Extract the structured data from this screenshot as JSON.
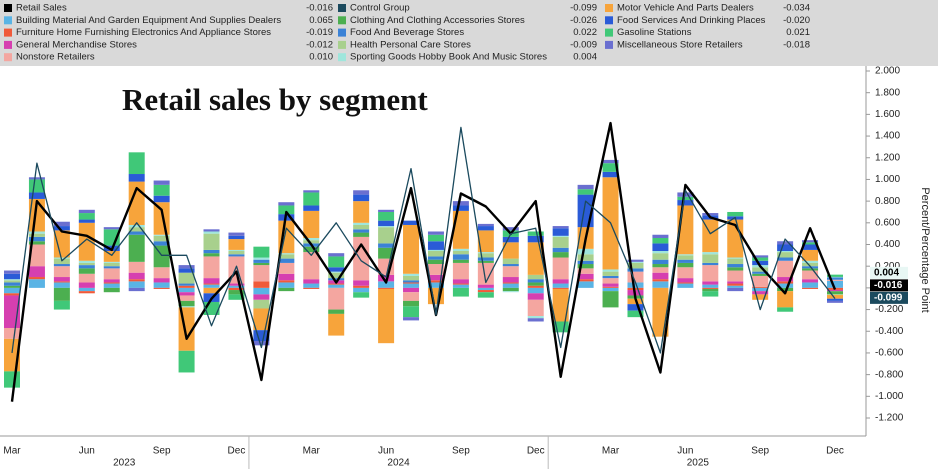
{
  "chart_data": {
    "type": "bar",
    "title": "Retail sales by segment",
    "y_label": "Percent/Percentage Point",
    "categories": [
      "Mar",
      null,
      null,
      "Jun",
      null,
      null,
      "Sep",
      null,
      null,
      "Dec",
      null,
      null,
      "Mar",
      null,
      null,
      "Jun",
      null,
      null,
      "Sep",
      null,
      null,
      "Dec",
      null,
      null,
      "Mar",
      null,
      null,
      "Jun",
      null,
      null,
      "Sep",
      null,
      null,
      "Dec"
    ],
    "year_labels": [
      "2023",
      "2024",
      "2025"
    ],
    "ylim": [
      -1.2,
      2.0
    ],
    "yticks": [
      {
        "value": 2.0,
        "label": "2.000"
      },
      {
        "value": 1.8,
        "label": "1.800"
      },
      {
        "value": 1.6,
        "label": "1.600"
      },
      {
        "value": 1.4,
        "label": "1.400"
      },
      {
        "value": 1.2,
        "label": "1.200"
      },
      {
        "value": 1.0,
        "label": "1.000"
      },
      {
        "value": 0.8,
        "label": "0.800"
      },
      {
        "value": 0.6,
        "label": "0.600"
      },
      {
        "value": 0.4,
        "label": "0.400"
      },
      {
        "value": 0.2,
        "label": "0.200"
      },
      {
        "value": 0,
        "label": "0.000"
      },
      {
        "value": -0.2,
        "label": "-0.200"
      },
      {
        "value": -0.4,
        "label": "-0.400"
      },
      {
        "value": -0.6,
        "label": "-0.600"
      },
      {
        "value": -0.8,
        "label": "-0.800"
      },
      {
        "value": -1.0,
        "label": "-1.000"
      },
      {
        "value": -1.2,
        "label": "-1.200"
      }
    ],
    "grid": false,
    "series": [
      {
        "name": "Retail Sales",
        "kind": "line",
        "color": "#000000",
        "legend_value": "-0.016",
        "badge": true,
        "values": [
          -1.05,
          0.8,
          0.52,
          0.48,
          0.35,
          0.92,
          0.72,
          -0.47,
          -0.1,
          0.15,
          -0.85,
          0.7,
          0.4,
          0.05,
          0.4,
          0.05,
          0.92,
          -0.25,
          0.87,
          0.75,
          0.5,
          0.8,
          -0.82,
          0.45,
          1.52,
          -0.1,
          -0.78,
          0.95,
          0.65,
          0.58,
          0.2,
          -0.05,
          0.55,
          -0.016
        ]
      },
      {
        "name": "Building Material And Garden Equipment And Supplies Dealers",
        "kind": "bar",
        "color": "#5ab4e5",
        "legend_value": "0.065",
        "values": [
          -0.05,
          0.08,
          0.05,
          -0.03,
          0.04,
          0.06,
          0.05,
          -0.04,
          0.03,
          0.02,
          -0.06,
          0.05,
          0.04,
          0.03,
          -0.04,
          0.06,
          0.04,
          0.05,
          0.03,
          -0.02,
          0.04,
          -0.05,
          0.04,
          0.06,
          -0.03,
          0.05,
          0.06,
          0.04,
          0.03,
          0.02,
          -0.03,
          0.04,
          0.05,
          0.065
        ]
      },
      {
        "name": "Furniture Home Furnishing Electronics And Appliance Stores",
        "kind": "bar",
        "color": "#f05a3a",
        "legend_value": "-0.019",
        "values": [
          -0.02,
          0.02,
          0.01,
          -0.02,
          0.01,
          0.02,
          -0.01,
          0.02,
          0.01,
          -0.02,
          0.06,
          0.02,
          -0.01,
          0.01,
          0.02,
          -0.01,
          0.01,
          0.02,
          0.01,
          -0.02,
          0.01,
          0.02,
          -0.01,
          0.02,
          0.01,
          -0.02,
          0.02,
          0.01,
          -0.01,
          0.02,
          0.01,
          0.02,
          -0.01,
          -0.019
        ]
      },
      {
        "name": "General Merchandise Stores",
        "kind": "bar",
        "color": "#d63fb0",
        "legend_value": "-0.012",
        "values": [
          -0.3,
          0.1,
          0.04,
          0.05,
          0.03,
          0.06,
          0.04,
          -0.03,
          0.05,
          0.02,
          -0.05,
          0.06,
          0.04,
          0.03,
          0.05,
          0.06,
          -0.04,
          0.05,
          0.04,
          0.03,
          0.05,
          -0.06,
          0.04,
          0.05,
          0.03,
          -0.05,
          0.06,
          0.04,
          0.03,
          0.02,
          -0.03,
          0.04,
          0.03,
          -0.012
        ]
      },
      {
        "name": "Nonstore Retailers",
        "kind": "bar",
        "color": "#f4a6a0",
        "legend_value": "0.010",
        "values": [
          -0.1,
          0.2,
          0.1,
          0.08,
          0.1,
          0.1,
          0.1,
          -0.05,
          0.2,
          0.25,
          0.15,
          0.1,
          0.25,
          -0.2,
          0.4,
          0.15,
          -0.08,
          0.1,
          0.15,
          0.2,
          0.1,
          -0.15,
          0.2,
          0.05,
          0.05,
          0.1,
          0.05,
          0.1,
          0.15,
          0.1,
          0.1,
          0.15,
          0.08,
          0.01
        ]
      },
      {
        "name": "Control Group",
        "kind": "line",
        "color": "#1b4a5e",
        "legend_value": "-0.099",
        "badge": true,
        "values": [
          -0.6,
          1.15,
          0.25,
          0.45,
          0.3,
          0.6,
          0.3,
          0.3,
          -0.35,
          0.2,
          -0.55,
          0.55,
          0.3,
          0.6,
          0.25,
          0.1,
          1.1,
          -0.25,
          1.48,
          0.05,
          0.5,
          0.55,
          -0.55,
          0.8,
          0.6,
          0.05,
          -0.6,
          0.9,
          0.5,
          0.65,
          -0.2,
          0.45,
          0.2,
          -0.099
        ]
      },
      {
        "name": "Clothing And Clothing Accessories Stores",
        "kind": "bar",
        "color": "#4caf50",
        "legend_value": "-0.026",
        "values": [
          0.02,
          0.03,
          -0.12,
          0.05,
          -0.04,
          0.25,
          0.2,
          -0.05,
          0.03,
          -0.04,
          0.02,
          -0.03,
          0.05,
          -0.04,
          0.04,
          0.1,
          -0.05,
          0.04,
          0.03,
          0.02,
          -0.03,
          0.03,
          0.05,
          0.04,
          -0.15,
          -0.03,
          0.03,
          0.04,
          -0.02,
          0.03,
          0.02,
          -0.03,
          0.02,
          -0.026
        ]
      },
      {
        "name": "Food And Beverage Stores",
        "kind": "bar",
        "color": "#3b82d6",
        "legend_value": "0.022",
        "values": [
          0.03,
          0.04,
          0.02,
          0.03,
          0.02,
          0.03,
          0.04,
          0.02,
          0.03,
          0.02,
          0.03,
          0.04,
          0.03,
          0.02,
          0.03,
          0.04,
          0.02,
          0.03,
          0.05,
          0.03,
          0.02,
          0.03,
          0.04,
          0.03,
          0.02,
          0.03,
          0.04,
          0.03,
          0.02,
          0.03,
          0.02,
          0.03,
          0.02,
          0.022
        ]
      },
      {
        "name": "Health Personal Care Stores",
        "kind": "bar",
        "color": "#a8d08d",
        "legend_value": "-0.009",
        "values": [
          0.02,
          0.03,
          0.05,
          0.02,
          0.03,
          0.04,
          0.05,
          0.1,
          0.15,
          0.03,
          -0.08,
          0.04,
          0.03,
          0.05,
          0.04,
          0.15,
          0.04,
          0.05,
          0.03,
          0.04,
          0.05,
          0.04,
          0.1,
          0.06,
          0.04,
          0.05,
          0.06,
          0.04,
          0.08,
          0.05,
          0.04,
          0.05,
          0.03,
          -0.009
        ]
      },
      {
        "name": "Sporting Goods Hobby Book And Music Stores",
        "kind": "bar",
        "color": "#9fe6dc",
        "legend_value": "0.004",
        "badge": true,
        "values": [
          0.01,
          0.02,
          0.01,
          0.02,
          0.01,
          0.02,
          0.01,
          -0.01,
          0.02,
          0.01,
          0.02,
          0.01,
          0.02,
          0.01,
          0.02,
          0.01,
          0.02,
          0.01,
          0.02,
          0.01,
          -0.01,
          -0.02,
          0.01,
          0.05,
          0.02,
          0.01,
          0.02,
          0.01,
          0.02,
          0.01,
          0.02,
          0.01,
          0.02,
          0.004
        ]
      },
      {
        "name": "Motor Vehicle And Parts Dealers",
        "kind": "bar",
        "color": "#f7a43b",
        "legend_value": "-0.034",
        "values": [
          -0.3,
          0.3,
          0.25,
          0.35,
          0.1,
          0.4,
          0.3,
          -0.4,
          -0.05,
          0.1,
          -0.2,
          0.3,
          0.25,
          -0.2,
          0.2,
          -0.5,
          0.45,
          -0.15,
          0.35,
          0.2,
          0.15,
          0.3,
          -0.3,
          0.2,
          0.85,
          -0.05,
          -0.45,
          0.45,
          0.3,
          0.35,
          -0.05,
          -0.15,
          0.1,
          -0.034
        ]
      },
      {
        "name": "Food Services And Drinking Places",
        "kind": "bar",
        "color": "#2a5bd7",
        "legend_value": "-0.020",
        "values": [
          0.05,
          0.06,
          0.04,
          0.03,
          0.05,
          0.07,
          0.06,
          0.04,
          -0.08,
          0.03,
          -0.1,
          0.06,
          0.05,
          0.04,
          0.06,
          0.05,
          0.04,
          0.08,
          0.05,
          0.04,
          0.05,
          0.06,
          0.07,
          0.3,
          0.05,
          -0.06,
          0.07,
          0.05,
          0.04,
          0.03,
          0.04,
          0.06,
          0.05,
          -0.02
        ]
      },
      {
        "name": "Gasoline Stations",
        "kind": "bar",
        "color": "#40c878",
        "legend_value": "0.021",
        "values": [
          -0.15,
          0.12,
          -0.08,
          0.06,
          0.15,
          0.2,
          0.1,
          -0.2,
          -0.12,
          -0.05,
          0.1,
          0.08,
          0.12,
          0.1,
          -0.05,
          0.08,
          -0.1,
          0.06,
          -0.08,
          -0.05,
          0.06,
          0.04,
          -0.1,
          0.05,
          0.08,
          -0.06,
          0.05,
          0.03,
          -0.05,
          0.04,
          0.03,
          -0.04,
          0.02,
          0.021
        ]
      },
      {
        "name": "Miscellaneous Store Retailers",
        "kind": "bar",
        "color": "#6a6fd0",
        "legend_value": "-0.018",
        "values": [
          0.03,
          0.02,
          0.04,
          0.03,
          0.02,
          -0.03,
          0.04,
          0.03,
          0.02,
          0.03,
          -0.04,
          0.03,
          0.02,
          0.03,
          0.04,
          0.02,
          -0.03,
          0.03,
          0.04,
          0.02,
          0.03,
          -0.03,
          0.02,
          0.04,
          0.03,
          0.02,
          0.03,
          0.04,
          0.02,
          -0.03,
          0.02,
          0.03,
          0.02,
          -0.018
        ]
      }
    ]
  }
}
